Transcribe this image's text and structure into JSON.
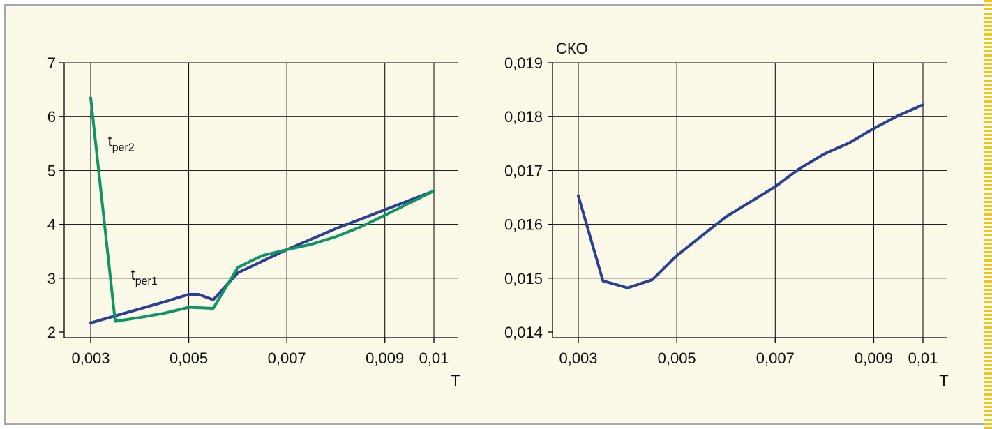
{
  "colors": {
    "background": "#fbf9e8",
    "frame_border": "#a7a9ac",
    "series_blue": "#2d3e96",
    "series_green": "#0f9464",
    "accent_stripe": "#f2c511"
  },
  "chart_data": [
    {
      "type": "line",
      "title": "",
      "xlabel": "T",
      "ylabel": "",
      "xlim": [
        0.003,
        0.01
      ],
      "ylim": [
        2,
        7
      ],
      "x_ticks": [
        0.003,
        0.005,
        0.007,
        0.009,
        0.01
      ],
      "x_tick_labels": [
        "0,003",
        "0,005",
        "0,007",
        "0,009",
        "0,01"
      ],
      "y_ticks": [
        2,
        3,
        4,
        5,
        6,
        7
      ],
      "y_tick_labels": [
        "2",
        "3",
        "4",
        "5",
        "6",
        "7"
      ],
      "grid": true,
      "series": [
        {
          "color": "#2d3e96",
          "x": [
            0.003,
            0.0035,
            0.004,
            0.0045,
            0.005,
            0.0052,
            0.0055,
            0.006,
            0.007,
            0.008,
            0.009,
            0.01
          ],
          "y": [
            2.17,
            2.3,
            2.43,
            2.56,
            2.7,
            2.7,
            2.6,
            3.1,
            3.53,
            3.92,
            4.27,
            4.62
          ]
        },
        {
          "color": "#0f9464",
          "x": [
            0.003,
            0.0035,
            0.004,
            0.0045,
            0.005,
            0.0055,
            0.006,
            0.0065,
            0.007,
            0.0075,
            0.008,
            0.0085,
            0.009,
            0.01
          ],
          "y": [
            6.35,
            2.2,
            2.27,
            2.35,
            2.46,
            2.44,
            3.2,
            3.42,
            3.53,
            3.63,
            3.77,
            3.95,
            4.17,
            4.62
          ]
        }
      ],
      "annotations": [
        {
          "text": "t",
          "sub": "per2",
          "x": 0.00335,
          "y": 5.45
        },
        {
          "text": "t",
          "sub": "per1",
          "x": 0.00382,
          "y": 2.97
        }
      ]
    },
    {
      "type": "line",
      "title": "",
      "xlabel": "T",
      "ylabel": "СКО",
      "xlim": [
        0.003,
        0.01
      ],
      "ylim": [
        0.014,
        0.019
      ],
      "x_ticks": [
        0.003,
        0.005,
        0.007,
        0.009,
        0.01
      ],
      "x_tick_labels": [
        "0,003",
        "0,005",
        "0,007",
        "0,009",
        "0,01"
      ],
      "y_ticks": [
        0.014,
        0.015,
        0.016,
        0.017,
        0.018,
        0.019
      ],
      "y_tick_labels": [
        "0,014",
        "0,015",
        "0,016",
        "0,017",
        "0,018",
        "0,019"
      ],
      "grid": true,
      "series": [
        {
          "color": "#2d3e96",
          "x": [
            0.003,
            0.0035,
            0.004,
            0.0045,
            0.005,
            0.0055,
            0.006,
            0.0065,
            0.007,
            0.0075,
            0.008,
            0.0085,
            0.009,
            0.0095,
            0.01
          ],
          "y": [
            0.01653,
            0.01495,
            0.01482,
            0.01497,
            0.01542,
            0.01578,
            0.01614,
            0.01642,
            0.0167,
            0.01704,
            0.01731,
            0.01751,
            0.01778,
            0.01802,
            0.01822
          ]
        }
      ]
    }
  ]
}
